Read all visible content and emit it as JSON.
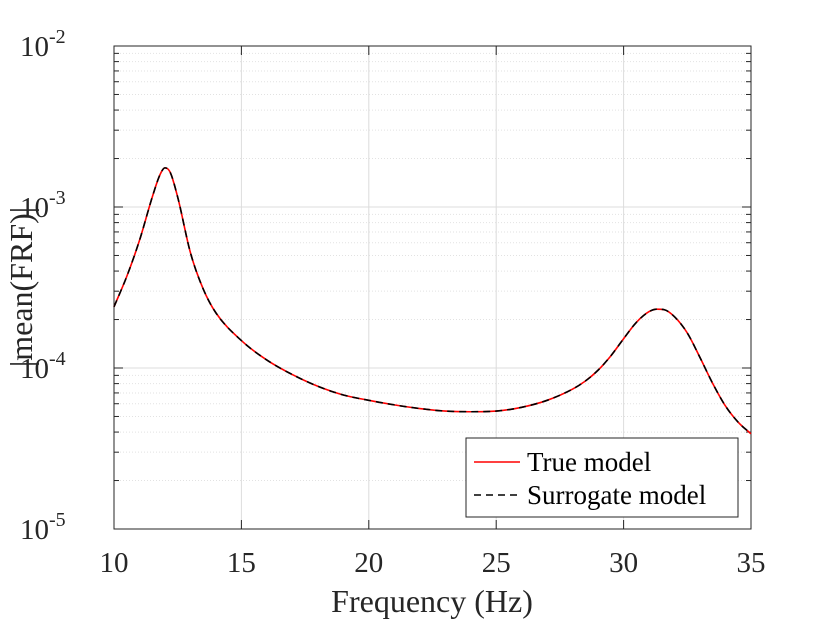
{
  "chart_data": {
    "type": "line",
    "title": "",
    "xlabel": "Frequency (Hz)",
    "ylabel": "|mean(FRF)|",
    "xlim": [
      10,
      35
    ],
    "ylim": [
      1e-05,
      0.01
    ],
    "yscale": "log",
    "grid": true,
    "x_ticks": [
      10,
      15,
      20,
      25,
      30,
      35
    ],
    "x_tick_labels": [
      "10",
      "15",
      "20",
      "25",
      "30",
      "35"
    ],
    "y_ticks": [
      {
        "value": 1e-05,
        "base": "10",
        "exponent": "-5"
      },
      {
        "value": 0.0001,
        "base": "10",
        "exponent": "-4"
      },
      {
        "value": 0.001,
        "base": "10",
        "exponent": "-3"
      },
      {
        "value": 0.01,
        "base": "10",
        "exponent": "-2"
      }
    ],
    "legend_position": "bottom-right",
    "series": [
      {
        "name": "True model",
        "color": "#ff0000",
        "style": "solid"
      },
      {
        "name": "Surrogate model",
        "color": "#000000",
        "style": "dashed"
      }
    ],
    "x": [
      10,
      10.5,
      11,
      11.5,
      11.8,
      12,
      12.2,
      12.5,
      13,
      13.5,
      14,
      15,
      16,
      17,
      18,
      19,
      20,
      21,
      22,
      23,
      24,
      25,
      26,
      27,
      28,
      28.5,
      29,
      29.5,
      30,
      30.5,
      31,
      31.3,
      31.6,
      32,
      32.5,
      33,
      33.5,
      34,
      34.5,
      35
    ],
    "y": [
      0.00024,
      0.00037,
      0.00062,
      0.00115,
      0.00158,
      0.00175,
      0.00165,
      0.00115,
      0.00052,
      0.00031,
      0.00022,
      0.000148,
      0.000112,
      9.1e-05,
      7.7e-05,
      6.8e-05,
      6.3e-05,
      5.9e-05,
      5.6e-05,
      5.4e-05,
      5.35e-05,
      5.4e-05,
      5.7e-05,
      6.3e-05,
      7.4e-05,
      8.3e-05,
      9.7e-05,
      0.000119,
      0.000152,
      0.000192,
      0.000224,
      0.000232,
      0.00023,
      0.000208,
      0.000165,
      0.000116,
      8e-05,
      5.8e-05,
      4.6e-05,
      3.9e-05
    ]
  }
}
